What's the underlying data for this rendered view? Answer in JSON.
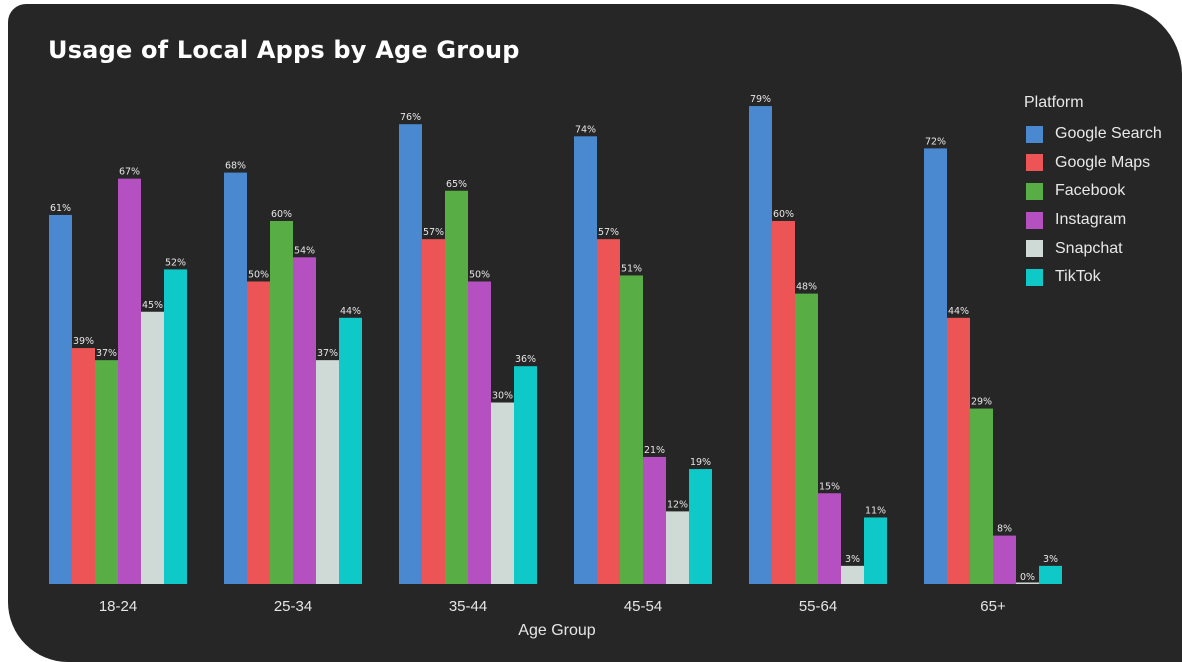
{
  "chart_data": {
    "type": "bar",
    "title": "Usage of Local Apps by Age Group",
    "xlabel": "Age Group",
    "ylabel": "",
    "ylim": [
      0,
      80
    ],
    "grid": false,
    "legend_title": "Platform",
    "legend_position": "top-right",
    "categories": [
      "18-24",
      "25-34",
      "35-44",
      "45-54",
      "55-64",
      "65+"
    ],
    "series": [
      {
        "name": "Google Search",
        "color": "#4a88d0",
        "values": [
          61,
          68,
          76,
          74,
          79,
          72
        ]
      },
      {
        "name": "Google Maps",
        "color": "#ec5455",
        "values": [
          39,
          50,
          57,
          57,
          60,
          44
        ]
      },
      {
        "name": "Facebook",
        "color": "#58ad45",
        "values": [
          37,
          60,
          65,
          51,
          48,
          29
        ]
      },
      {
        "name": "Instagram",
        "color": "#b550c0",
        "values": [
          67,
          54,
          50,
          21,
          15,
          8
        ]
      },
      {
        "name": "Snapchat",
        "color": "#cfd9d6",
        "values": [
          45,
          37,
          30,
          12,
          3,
          0
        ]
      },
      {
        "name": "TikTok",
        "color": "#0fc8c8",
        "values": [
          52,
          44,
          36,
          19,
          11,
          3
        ]
      }
    ]
  }
}
